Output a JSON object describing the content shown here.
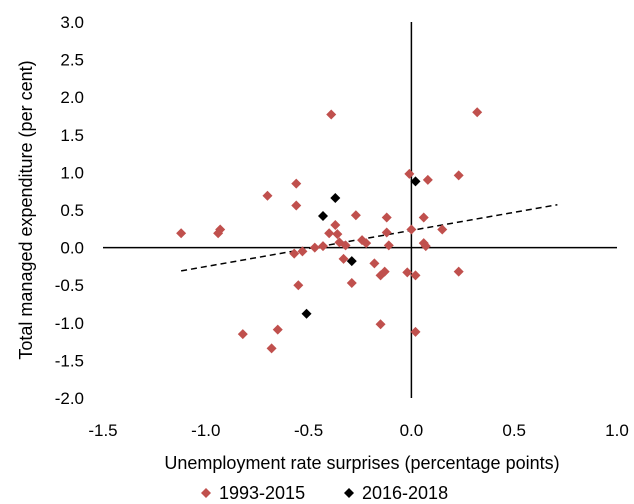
{
  "chart_data": {
    "type": "scatter",
    "xlabel": "Unemployment rate surprises (percentage points)",
    "ylabel": "Total managed expenditure (per cent)",
    "xlim": [
      -1.5,
      1.0
    ],
    "ylim": [
      -2.0,
      3.0
    ],
    "x_ticks": [
      "-1.5",
      "-1.0",
      "-0.5",
      "0.0",
      "0.5",
      "1.0"
    ],
    "y_ticks": [
      "3.0",
      "2.5",
      "2.0",
      "1.5",
      "1.0",
      "0.5",
      "0.0",
      "-0.5",
      "-1.0",
      "-1.5",
      "-2.0"
    ],
    "x_tick_values": [
      -1.5,
      -1.0,
      -0.5,
      0.0,
      0.5,
      1.0
    ],
    "y_tick_values": [
      3.0,
      2.5,
      2.0,
      1.5,
      1.0,
      0.5,
      0.0,
      -0.5,
      -1.0,
      -1.5,
      -2.0
    ],
    "grid": false,
    "legend_position": "bottom",
    "trendline": {
      "style": "dashed",
      "x": [
        -1.12,
        0.71
      ],
      "y": [
        -0.31,
        0.57
      ]
    },
    "series": [
      {
        "name": "1993-2015",
        "color": "#c0504d",
        "marker": "diamond",
        "points": [
          [
            -1.12,
            0.19
          ],
          [
            -0.94,
            0.19
          ],
          [
            -0.93,
            0.24
          ],
          [
            -0.82,
            -1.15
          ],
          [
            -0.68,
            -1.34
          ],
          [
            -0.7,
            0.69
          ],
          [
            -0.65,
            -1.09
          ],
          [
            -0.56,
            0.85
          ],
          [
            -0.56,
            0.56
          ],
          [
            -0.55,
            -0.5
          ],
          [
            -0.57,
            -0.08
          ],
          [
            -0.53,
            -0.05
          ],
          [
            -0.47,
            0.0
          ],
          [
            -0.43,
            0.02
          ],
          [
            -0.39,
            1.77
          ],
          [
            -0.4,
            0.19
          ],
          [
            -0.37,
            0.3
          ],
          [
            -0.36,
            0.18
          ],
          [
            -0.35,
            0.07
          ],
          [
            -0.33,
            -0.15
          ],
          [
            -0.32,
            0.03
          ],
          [
            -0.29,
            -0.47
          ],
          [
            -0.27,
            0.43
          ],
          [
            -0.24,
            0.1
          ],
          [
            -0.22,
            0.06
          ],
          [
            -0.18,
            -0.21
          ],
          [
            -0.15,
            -1.02
          ],
          [
            -0.15,
            -0.37
          ],
          [
            -0.13,
            -0.32
          ],
          [
            -0.12,
            0.4
          ],
          [
            -0.12,
            0.2
          ],
          [
            -0.11,
            0.03
          ],
          [
            -0.01,
            0.98
          ],
          [
            -0.02,
            -0.33
          ],
          [
            0.0,
            0.24
          ],
          [
            0.02,
            -0.37
          ],
          [
            0.02,
            -1.12
          ],
          [
            0.06,
            0.4
          ],
          [
            0.06,
            0.06
          ],
          [
            0.07,
            0.02
          ],
          [
            0.08,
            0.9
          ],
          [
            0.15,
            0.24
          ],
          [
            0.23,
            0.96
          ],
          [
            0.23,
            -0.32
          ],
          [
            0.32,
            1.8
          ]
        ]
      },
      {
        "name": "2016-2018",
        "color": "#000000",
        "marker": "diamond",
        "points": [
          [
            -0.51,
            -0.88
          ],
          [
            -0.43,
            0.42
          ],
          [
            -0.37,
            0.66
          ],
          [
            -0.29,
            -0.18
          ],
          [
            0.02,
            0.88
          ]
        ]
      }
    ]
  }
}
